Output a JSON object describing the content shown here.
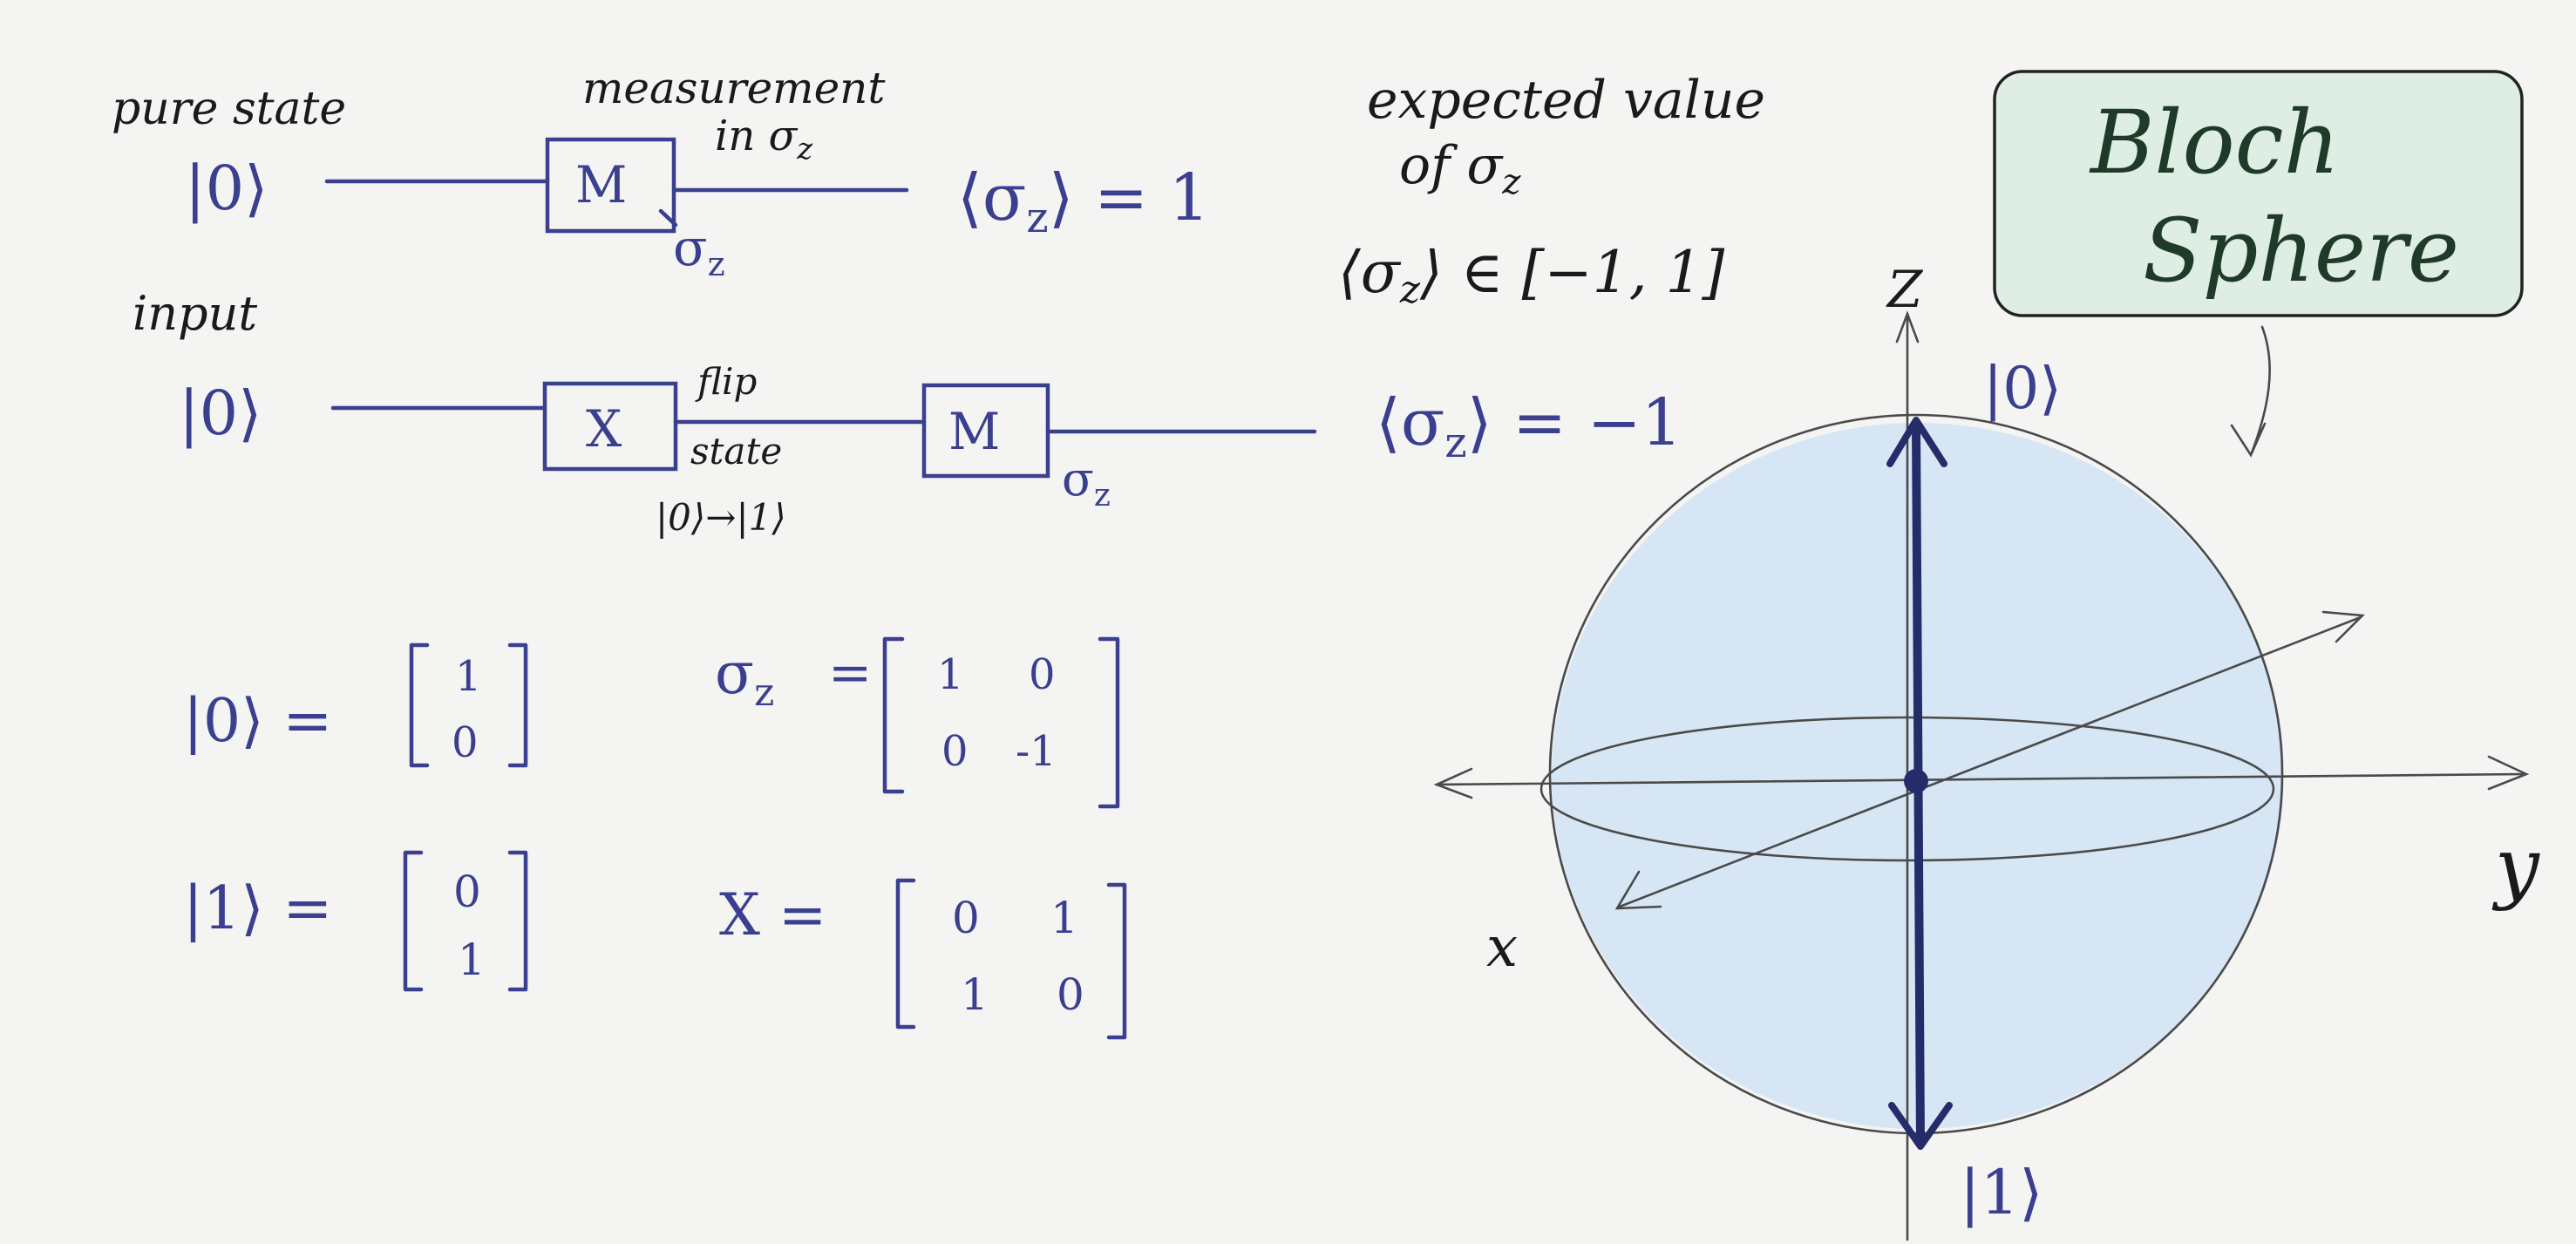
{
  "circuit1": {
    "note_top": "pure state",
    "input_ket": "|0⟩",
    "gate": "M",
    "gate_sub": "σ",
    "gate_sub_z": "z",
    "measure_line1": "measurement",
    "measure_line2": "in σ",
    "measure_line2_z": "z",
    "result_open": "⟨σ",
    "result_z": "z",
    "result_close": "⟩ = 1"
  },
  "circuit2": {
    "note_top": "input",
    "input_ket": "|0⟩",
    "gate_x": "X",
    "flip_line1": "flip",
    "flip_line2": "state",
    "flip_line3": "|0⟩→|1⟩",
    "gate_m": "M",
    "gate_sub": "σ",
    "gate_sub_z": "z",
    "result_open": "⟨σ",
    "result_z": "z",
    "result_close": "⟩ = −1"
  },
  "expected": {
    "line1": "expected value",
    "line2": "of σ",
    "line2_z": "z",
    "line3_open": "⟨σ",
    "line3_z": "z",
    "line3_close": "⟩ ∈ [−1, 1]"
  },
  "matrices": {
    "ket0_label": "|0⟩ =",
    "ket0": [
      "1",
      "0"
    ],
    "ket1_label": "|1⟩ =",
    "ket1": [
      "0",
      "1"
    ],
    "sigmaz_label": "σ",
    "sigmaz_sub": "z",
    "sigmaz_eq": "=",
    "sigmaz": [
      "1",
      "0",
      "0",
      "-1"
    ],
    "x_label": "X =",
    "x": [
      "0",
      "1",
      "1",
      "0"
    ]
  },
  "bloch": {
    "title_line1": "Bloch",
    "title_line2": "Sphere",
    "axis_z": "Z",
    "axis_y": "y",
    "axis_x": "x",
    "top_ket": "|0⟩",
    "bottom_ket": "|1⟩",
    "colors": {
      "sphere": "#d6e6f5",
      "title_box": "#deeee4",
      "ink": "#3a3f8f"
    }
  }
}
